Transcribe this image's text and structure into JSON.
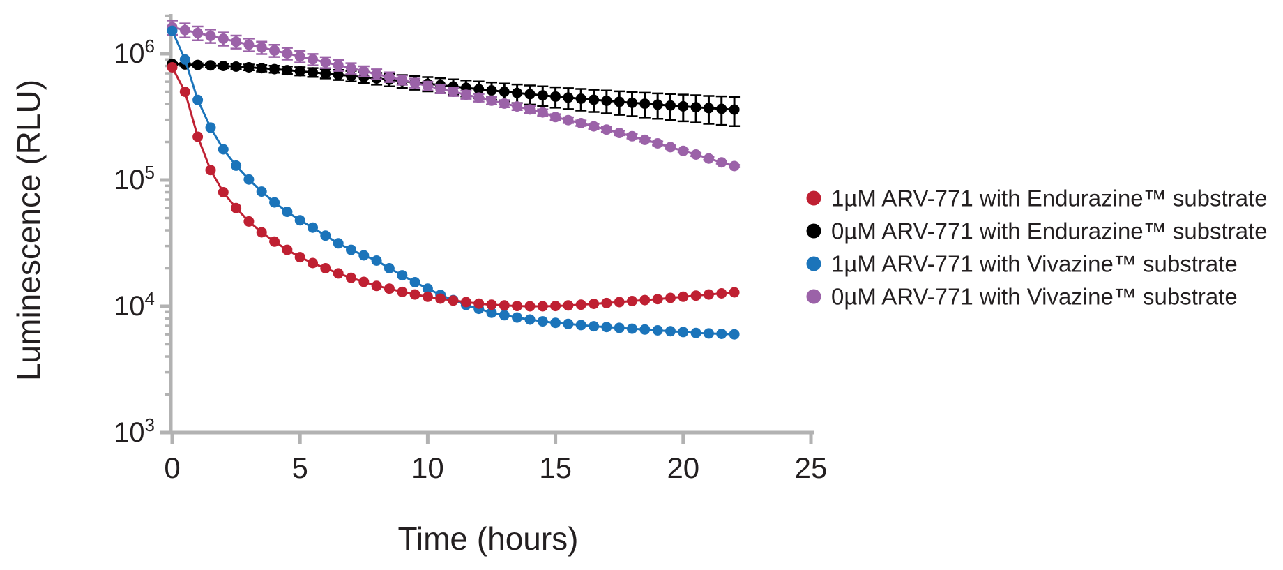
{
  "figure": {
    "background": "#ffffff",
    "axis_color": "#b2b2b2",
    "text_color": "#231f20"
  },
  "chart_data": {
    "type": "line",
    "title": "",
    "xlabel": "Time (hours)",
    "ylabel": "Luminescence (RLU)",
    "x_ticks": [
      0,
      5,
      10,
      15,
      20,
      25
    ],
    "y_scale": "log",
    "y_tick_exponents": [
      3,
      4,
      5,
      6
    ],
    "xlim": [
      0,
      25
    ],
    "ylim": [
      1000,
      2000000
    ],
    "grid": false,
    "legend_position": "right-outside",
    "x_start": 0,
    "x_step": 0.5,
    "x_end": 22,
    "series": [
      {
        "name": "1µM ARV-771 with Endurazine™ substrate",
        "color": "#bf2032",
        "marker": "circle",
        "error_bars": null,
        "values": [
          780000,
          500000,
          220000,
          120000,
          80000,
          60000,
          47000,
          38500,
          32500,
          28000,
          24500,
          22000,
          20000,
          18200,
          16800,
          15600,
          14500,
          13800,
          13000,
          12400,
          11900,
          11500,
          11100,
          10800,
          10500,
          10300,
          10150,
          10050,
          10000,
          10000,
          10050,
          10150,
          10300,
          10450,
          10600,
          10800,
          11000,
          11200,
          11400,
          11650,
          11900,
          12150,
          12400,
          12650,
          12900
        ]
      },
      {
        "name": "0µM ARV-771 with Endurazine™ substrate",
        "color": "#000000",
        "marker": "circle",
        "error_bars": {
          "rel_at_t0": 0.02,
          "rel_at_t22": 0.26
        },
        "values": [
          830000,
          822000,
          815000,
          808000,
          800000,
          790000,
          780000,
          768000,
          755000,
          741000,
          727000,
          712000,
          697000,
          682000,
          667000,
          652000,
          637000,
          622000,
          607000,
          592000,
          578000,
          564000,
          550000,
          537000,
          524000,
          512000,
          500000,
          489000,
          478000,
          468000,
          458000,
          449000,
          440000,
          432000,
          424000,
          416000,
          409000,
          402000,
          395000,
          389000,
          383000,
          377000,
          371000,
          366000,
          361000
        ]
      },
      {
        "name": "1µM ARV-771 with Vivazine™ substrate",
        "color": "#1b74ba",
        "marker": "circle",
        "error_bars": null,
        "values": [
          1520000,
          900000,
          430000,
          260000,
          175000,
          130000,
          101000,
          81000,
          66500,
          56000,
          48000,
          42000,
          36300,
          31500,
          28000,
          25300,
          23000,
          20000,
          17600,
          15500,
          13800,
          12300,
          11200,
          10250,
          9550,
          8900,
          8500,
          8150,
          7850,
          7600,
          7400,
          7250,
          7100,
          6950,
          6850,
          6750,
          6650,
          6550,
          6450,
          6350,
          6250,
          6150,
          6100,
          6050,
          6000
        ]
      },
      {
        "name": "0µM ARV-771 with Vivazine™ substrate",
        "color": "#9b62a8",
        "marker": "circle",
        "error_bars": {
          "rel_at_t0": 0.13,
          "rel_at_t22": 0.02
        },
        "values": [
          1620000,
          1540000,
          1460000,
          1385000,
          1315000,
          1245000,
          1180000,
          1120000,
          1060000,
          1005000,
          952000,
          902000,
          855000,
          810000,
          768000,
          728000,
          690000,
          654000,
          620000,
          587000,
          556000,
          527000,
          500000,
          474000,
          449000,
          425000,
          403000,
          382000,
          362000,
          343000,
          315000,
          298000,
          282000,
          266000,
          251000,
          236000,
          222000,
          208000,
          195000,
          182000,
          170000,
          159000,
          148000,
          138000,
          129000
        ]
      }
    ]
  },
  "legend": {
    "items": [
      {
        "label": "1µM ARV-771 with Endurazine™ substrate",
        "color": "#bf2032"
      },
      {
        "label": "0µM ARV-771 with Endurazine™ substrate",
        "color": "#000000"
      },
      {
        "label": "1µM ARV-771 with Vivazine™ substrate",
        "color": "#1b74ba"
      },
      {
        "label": "0µM ARV-771 with Vivazine™ substrate",
        "color": "#9b62a8"
      }
    ]
  }
}
